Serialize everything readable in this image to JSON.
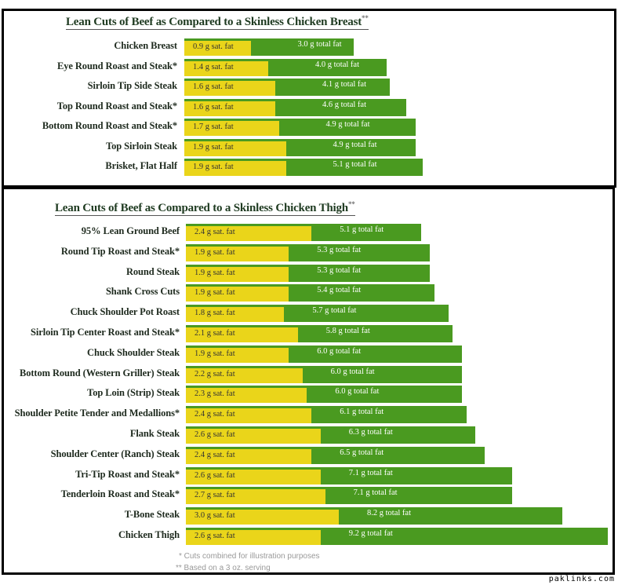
{
  "chart_data": [
    {
      "type": "bar",
      "orientation": "horizontal",
      "stacked_overlay": true,
      "title": "Lean Cuts of Beef as Compared to a Skinless Chicken Breast",
      "title_marker": "**",
      "categories": [
        "Chicken Breast",
        "Eye Round Roast and Steak*",
        "Sirloin Tip Side Steak",
        "Top Round Roast and Steak*",
        "Bottom Round Roast and Steak*",
        "Top Sirloin Steak",
        "Brisket, Flat Half"
      ],
      "series": [
        {
          "name": "sat. fat",
          "unit": "g",
          "color": "#ead51a",
          "values": [
            0.9,
            1.4,
            1.6,
            1.6,
            1.7,
            1.9,
            1.9
          ]
        },
        {
          "name": "total fat",
          "unit": "g",
          "color": "#4a9a20",
          "values": [
            3.0,
            4.0,
            4.1,
            4.6,
            4.9,
            4.9,
            5.1
          ]
        }
      ],
      "sat_labels": [
        "0.9 g sat. fat",
        "1.4 g sat. fat",
        "1.6 g sat. fat",
        "1.6 g sat. fat",
        "1.7 g sat. fat",
        "1.9 g sat. fat",
        "1.9 g sat. fat"
      ],
      "total_labels": [
        "3.0 g total fat",
        "4.0 g total fat",
        "4.1 g total fat",
        "4.6 g total fat",
        "4.9 g total fat",
        "4.9 g total fat",
        "5.1 g total fat"
      ]
    },
    {
      "type": "bar",
      "orientation": "horizontal",
      "stacked_overlay": true,
      "title": "Lean Cuts of Beef as Compared to a Skinless Chicken Thigh",
      "title_marker": "**",
      "categories": [
        "95% Lean Ground Beef",
        "Round Tip Roast and Steak*",
        "Round Steak",
        "Shank Cross Cuts",
        "Chuck Shoulder Pot Roast",
        "Sirloin Tip Center Roast and Steak*",
        "Chuck Shoulder Steak",
        "Bottom Round (Western Griller) Steak",
        "Top Loin (Strip) Steak",
        "Shoulder Petite Tender and Medallions*",
        "Flank Steak",
        "Shoulder Center (Ranch) Steak",
        "Tri-Tip Roast and Steak*",
        "Tenderloin Roast and Steak*",
        "T-Bone Steak",
        "Chicken Thigh"
      ],
      "series": [
        {
          "name": "sat. fat",
          "unit": "g",
          "color": "#ead51a",
          "values": [
            2.4,
            1.9,
            1.9,
            1.9,
            1.8,
            2.1,
            1.9,
            2.2,
            2.3,
            2.4,
            2.6,
            2.4,
            2.6,
            2.7,
            3.0,
            2.6
          ]
        },
        {
          "name": "total fat",
          "unit": "g",
          "color": "#4a9a20",
          "values": [
            5.1,
            5.3,
            5.3,
            5.4,
            5.7,
            5.8,
            6.0,
            6.0,
            6.0,
            6.1,
            6.3,
            6.5,
            7.1,
            7.1,
            8.2,
            9.2
          ]
        }
      ],
      "sat_labels": [
        "2.4 g sat. fat",
        "1.9 g sat. fat",
        "1.9 g sat. fat",
        "1.9 g sat. fat",
        "1.8 g sat. fat",
        "2.1 g sat. fat",
        "1.9 g sat. fat",
        "2.2 g sat. fat",
        "2.3 g sat. fat",
        "2.4 g sat. fat",
        "2.6 g sat. fat",
        "2.4 g sat. fat",
        "2.6 g sat. fat",
        "2.7 g sat. fat",
        "3.0 g sat. fat",
        "2.6 g sat. fat"
      ],
      "total_labels": [
        "5.1 g total fat",
        "5.3 g total fat",
        "5.3 g total fat",
        "5.4 g total fat",
        "5.7 g total fat",
        "5.8 g total fat",
        "6.0 g total fat",
        "6.0 g total fat",
        "6.0 g total fat",
        "6.1 g total fat",
        "6.3 g total fat",
        "6.5 g total fat",
        "7.1 g total fat",
        "7.1 g total fat",
        "8.2 g total fat",
        "9.2 g total fat"
      ]
    }
  ],
  "footnotes": [
    "* Cuts combined for illustration purposes",
    "** Based on a 3 oz. serving"
  ],
  "watermark": "paklinks.com"
}
